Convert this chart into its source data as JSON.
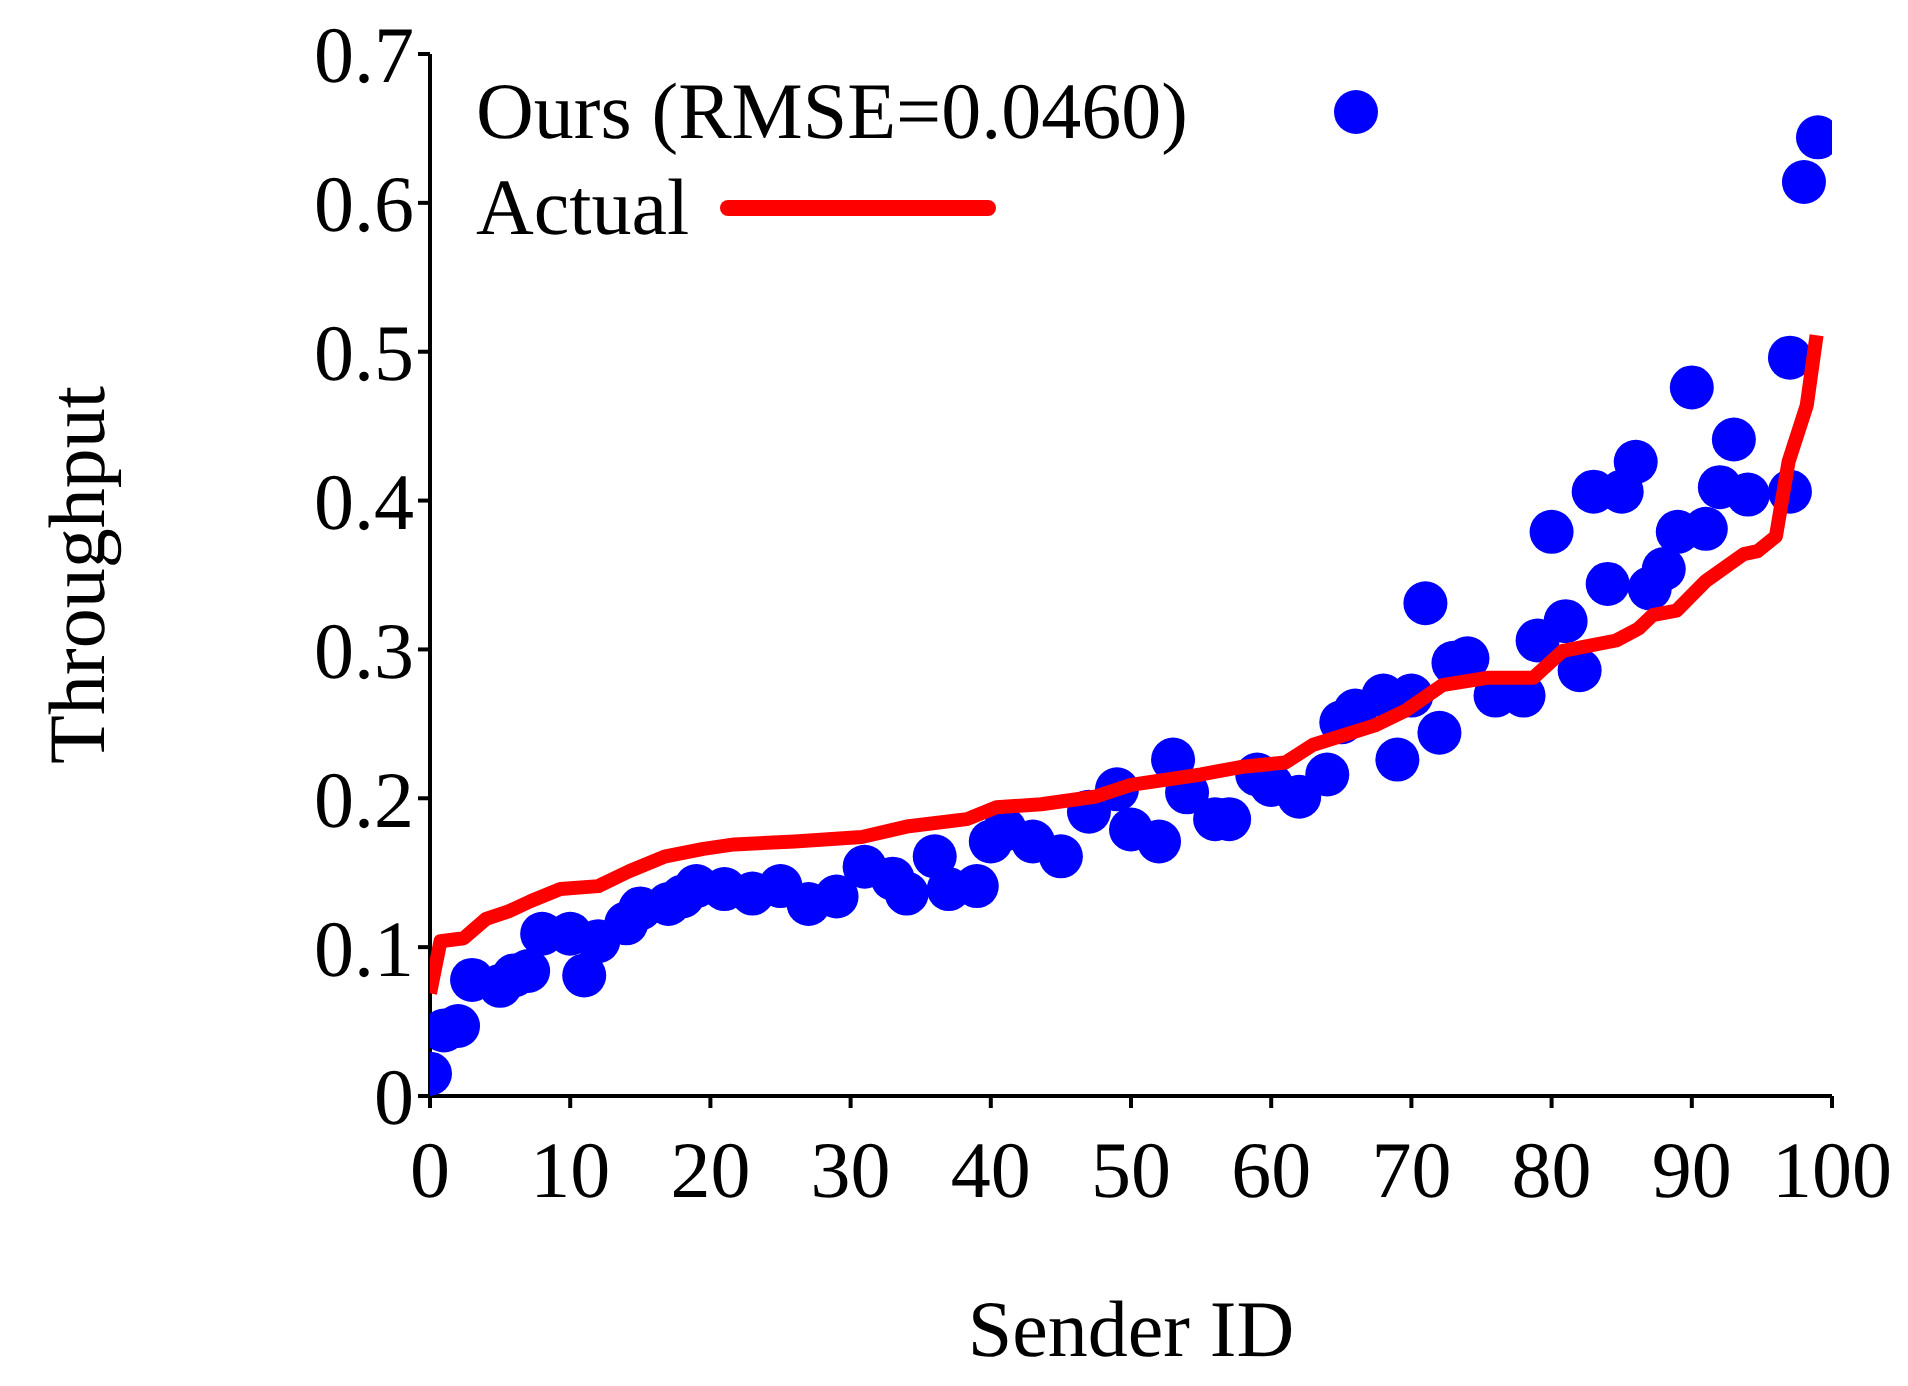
{
  "chart_data": {
    "type": "scatter",
    "xlabel": "Sender ID",
    "ylabel": "Throughput",
    "xlim": [
      0,
      100
    ],
    "ylim": [
      0,
      0.7
    ],
    "xticks": [
      0,
      10,
      20,
      30,
      40,
      50,
      60,
      70,
      80,
      90,
      100
    ],
    "yticks": [
      0,
      0.1,
      0.2,
      0.3,
      0.4,
      0.5,
      0.6,
      0.7
    ],
    "grid": false,
    "legend": "top",
    "series": [
      {
        "name": "Ours (RMSE=0.0460)",
        "marker": "circle",
        "color": "#0000ff",
        "x": [
          0,
          1,
          2,
          3,
          5,
          6,
          7,
          8,
          10,
          11,
          12,
          14,
          15,
          17,
          18,
          19,
          21,
          23,
          25,
          27,
          29,
          31,
          33,
          34,
          36,
          37,
          39,
          40,
          41,
          43,
          45,
          47,
          49,
          50,
          52,
          53,
          54,
          56,
          57,
          59,
          60,
          62,
          64,
          65,
          66,
          68,
          69,
          70,
          71,
          72,
          73,
          74,
          76,
          78,
          79,
          80,
          81,
          82,
          83,
          84,
          85,
          86,
          87,
          88,
          89,
          90,
          91,
          92,
          93,
          94,
          97,
          97,
          98,
          99
        ],
        "values": [
          0.015,
          0.044,
          0.047,
          0.078,
          0.074,
          0.081,
          0.084,
          0.109,
          0.109,
          0.081,
          0.104,
          0.116,
          0.126,
          0.129,
          0.134,
          0.141,
          0.139,
          0.136,
          0.141,
          0.129,
          0.134,
          0.154,
          0.146,
          0.136,
          0.161,
          0.139,
          0.141,
          0.171,
          0.179,
          0.171,
          0.161,
          0.191,
          0.206,
          0.179,
          0.171,
          0.226,
          0.204,
          0.186,
          0.186,
          0.216,
          0.209,
          0.201,
          0.216,
          0.251,
          0.259,
          0.269,
          0.226,
          0.269,
          0.331,
          0.244,
          0.291,
          0.294,
          0.269,
          0.269,
          0.306,
          0.379,
          0.319,
          0.286,
          0.406,
          0.344,
          0.406,
          0.426,
          0.341,
          0.354,
          0.379,
          0.476,
          0.381,
          0.409,
          0.441,
          0.404,
          0.496,
          0.406,
          0.614,
          0.644
        ]
      },
      {
        "name": "Actual",
        "type": "line",
        "marker": "none",
        "line_style": "solid",
        "color": "#ff0000",
        "x": [
          0,
          0.75,
          2.4,
          4,
          5.6,
          7.2,
          9.3,
          12,
          14.2,
          16.8,
          19.5,
          21.7,
          26,
          30.8,
          34,
          38.3,
          40.4,
          43.6,
          47.4,
          50,
          55,
          57.8,
          61,
          63,
          67.4,
          69.6,
          72.2,
          75.5,
          78.7,
          80.8,
          84.6,
          86.2,
          87.2,
          88.9,
          91,
          93.7,
          94.7,
          96,
          96.9,
          98.2,
          98.9
        ],
        "values": [
          0.069,
          0.104,
          0.106,
          0.119,
          0.124,
          0.131,
          0.139,
          0.141,
          0.151,
          0.161,
          0.166,
          0.169,
          0.171,
          0.174,
          0.181,
          0.186,
          0.194,
          0.196,
          0.201,
          0.209,
          0.216,
          0.221,
          0.224,
          0.236,
          0.249,
          0.259,
          0.276,
          0.281,
          0.281,
          0.299,
          0.306,
          0.314,
          0.323,
          0.326,
          0.346,
          0.364,
          0.366,
          0.376,
          0.426,
          0.464,
          0.511
        ]
      }
    ]
  }
}
